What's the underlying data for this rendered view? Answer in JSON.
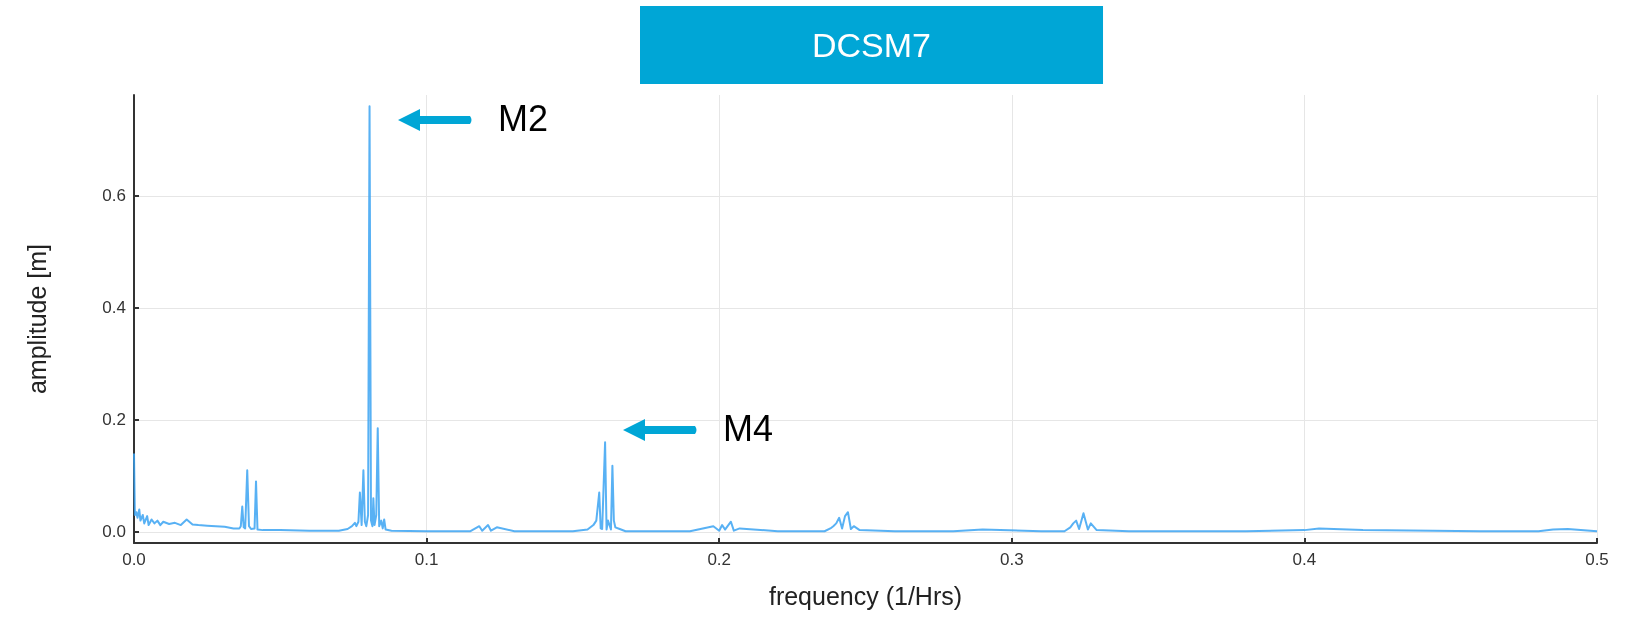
{
  "chart_data": {
    "type": "line",
    "title": "DCSM7",
    "xlabel": "frequency (1/Hrs)",
    "ylabel": "amplitude [m]",
    "xlim": [
      0,
      0.5
    ],
    "ylim": [
      -0.02,
      0.78
    ],
    "xticks": [
      {
        "value": 0,
        "label": "0.0"
      },
      0.1,
      0.2,
      0.3,
      0.4,
      0.5
    ],
    "yticks": [
      {
        "value": 0,
        "label": "0.0"
      },
      0.2,
      0.4,
      0.6
    ],
    "grid": true,
    "marker": "none",
    "line_style": "solid",
    "annotations": [
      "M2",
      "M4"
    ],
    "series": [
      {
        "color": "#3ba3f2",
        "x": [
          0,
          0.0003,
          0.0008,
          0.0012,
          0.0018,
          0.0022,
          0.003,
          0.0035,
          0.0045,
          0.005,
          0.006,
          0.007,
          0.008,
          0.009,
          0.01,
          0.012,
          0.014,
          0.016,
          0.018,
          0.02,
          0.022,
          0.025,
          0.028,
          0.031,
          0.034,
          0.036,
          0.0365,
          0.037,
          0.0375,
          0.038,
          0.0387,
          0.0393,
          0.04,
          0.0412,
          0.0417,
          0.0422,
          0.044,
          0.05,
          0.06,
          0.07,
          0.073,
          0.0745,
          0.0755,
          0.076,
          0.0767,
          0.0772,
          0.0778,
          0.0784,
          0.0789,
          0.0794,
          0.08,
          0.0805,
          0.081,
          0.0815,
          0.0818,
          0.0822,
          0.0828,
          0.0833,
          0.0838,
          0.0845,
          0.085,
          0.0855,
          0.086,
          0.088,
          0.1,
          0.115,
          0.118,
          0.119,
          0.121,
          0.122,
          0.124,
          0.13,
          0.15,
          0.155,
          0.157,
          0.158,
          0.159,
          0.1595,
          0.16,
          0.161,
          0.1615,
          0.162,
          0.163,
          0.1635,
          0.164,
          0.1645,
          0.166,
          0.168,
          0.17,
          0.19,
          0.198,
          0.2,
          0.201,
          0.202,
          0.204,
          0.205,
          0.207,
          0.22,
          0.236,
          0.238,
          0.239,
          0.24,
          0.241,
          0.242,
          0.243,
          0.244,
          0.245,
          0.246,
          0.248,
          0.26,
          0.28,
          0.29,
          0.31,
          0.318,
          0.32,
          0.321,
          0.322,
          0.323,
          0.3245,
          0.326,
          0.327,
          0.329,
          0.34,
          0.38,
          0.4,
          0.405,
          0.41,
          0.42,
          0.46,
          0.48,
          0.485,
          0.49,
          0.5
        ],
        "values": [
          0.14,
          0.03,
          0.035,
          0.025,
          0.04,
          0.02,
          0.03,
          0.015,
          0.028,
          0.012,
          0.022,
          0.015,
          0.02,
          0.012,
          0.018,
          0.014,
          0.016,
          0.012,
          0.022,
          0.013,
          0.012,
          0.011,
          0.01,
          0.009,
          0.006,
          0.006,
          0.01,
          0.045,
          0.008,
          0.006,
          0.11,
          0.01,
          0.005,
          0.006,
          0.09,
          0.004,
          0.003,
          0.003,
          0.002,
          0.002,
          0.005,
          0.01,
          0.016,
          0.01,
          0.018,
          0.07,
          0.012,
          0.11,
          0.018,
          0.01,
          0.03,
          0.76,
          0.02,
          0.01,
          0.06,
          0.012,
          0.03,
          0.185,
          0.01,
          0.02,
          0.006,
          0.022,
          0.004,
          0.002,
          0.001,
          0.001,
          0.01,
          0.002,
          0.012,
          0.002,
          0.008,
          0.001,
          0.001,
          0.004,
          0.012,
          0.02,
          0.07,
          0.006,
          0.005,
          0.16,
          0.004,
          0.02,
          0.004,
          0.118,
          0.02,
          0.008,
          0.005,
          0.001,
          0.001,
          0.001,
          0.01,
          0.002,
          0.012,
          0.004,
          0.018,
          0.002,
          0.006,
          0.001,
          0.001,
          0.006,
          0.01,
          0.015,
          0.025,
          0.006,
          0.028,
          0.035,
          0.005,
          0.01,
          0.003,
          0.001,
          0.001,
          0.004,
          0.001,
          0.001,
          0.008,
          0.015,
          0.02,
          0.005,
          0.033,
          0.004,
          0.015,
          0.003,
          0.001,
          0.001,
          0.003,
          0.006,
          0.005,
          0.003,
          0.001,
          0.001,
          0.004,
          0.005,
          0.001
        ]
      }
    ]
  }
}
